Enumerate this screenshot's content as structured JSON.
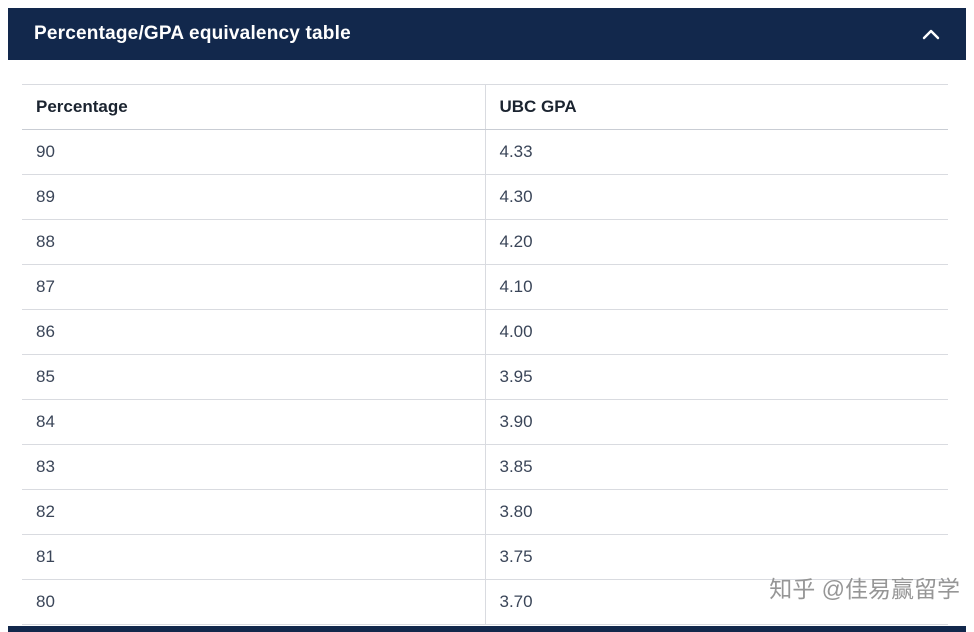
{
  "accordion": {
    "title": "Percentage/GPA equivalency table",
    "state": "expanded",
    "icon": "chevron-up"
  },
  "table": {
    "columns": [
      "Percentage",
      "UBC GPA"
    ],
    "rows": [
      [
        "90",
        "4.33"
      ],
      [
        "89",
        "4.30"
      ],
      [
        "88",
        "4.20"
      ],
      [
        "87",
        "4.10"
      ],
      [
        "86",
        "4.00"
      ],
      [
        "85",
        "3.95"
      ],
      [
        "84",
        "3.90"
      ],
      [
        "83",
        "3.85"
      ],
      [
        "82",
        "3.80"
      ],
      [
        "81",
        "3.75"
      ],
      [
        "80",
        "3.70"
      ]
    ]
  },
  "watermark": "知乎 @佳易赢留学",
  "colors": {
    "header_bg": "#12284C",
    "header_text": "#ffffff",
    "border": "#d9dbe0",
    "cell_text": "#3a4558"
  }
}
